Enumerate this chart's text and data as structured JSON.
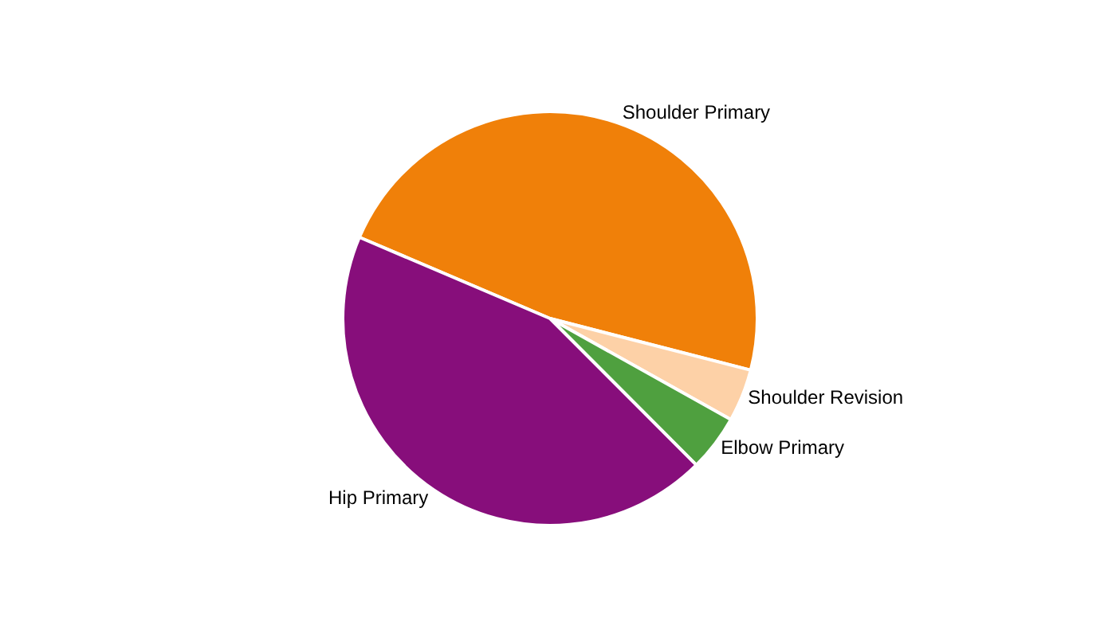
{
  "chart_data": {
    "type": "pie",
    "categories": [
      "Shoulder Primary",
      "Shoulder Revision",
      "Elbow Primary",
      "Hip Primary"
    ],
    "values": [
      47.6,
      4.1,
      4.4,
      43.9
    ],
    "colors": [
      "#f08009",
      "#fdd1a7",
      "#4fa03f",
      "#870e7b"
    ],
    "legend": false
  }
}
